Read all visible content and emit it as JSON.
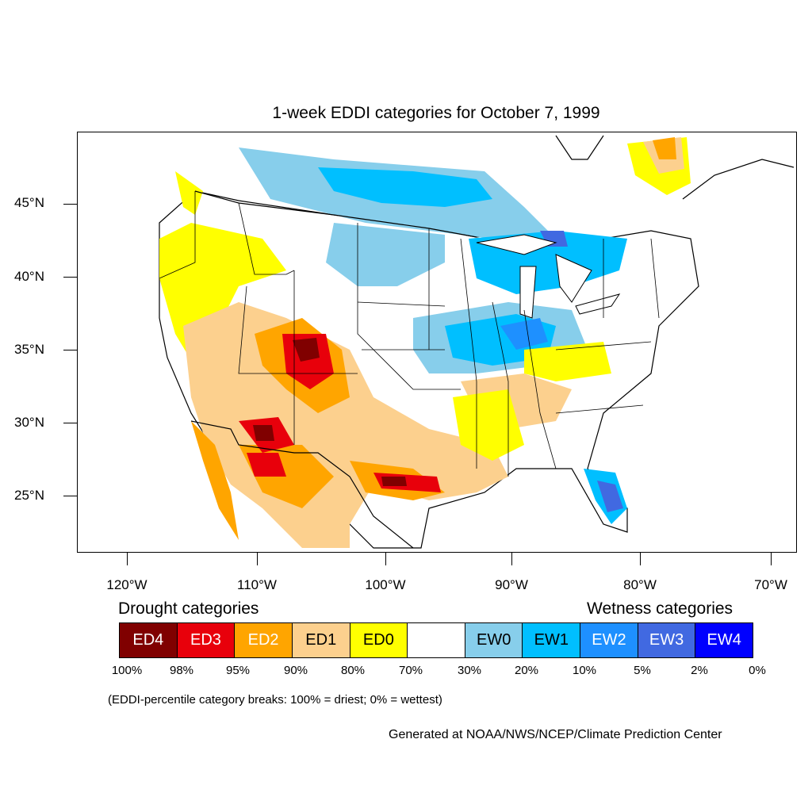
{
  "title": "1-week EDDI categories for October 7, 1999",
  "latitude_labels": [
    "45°N",
    "40°N",
    "35°N",
    "30°N",
    "25°N"
  ],
  "longitude_labels": [
    "120°W",
    "110°W",
    "100°W",
    "90°W",
    "80°W",
    "70°W"
  ],
  "legend": {
    "drought_heading": "Drought categories",
    "wetness_heading": "Wetness categories",
    "categories": [
      {
        "label": "ED4",
        "color": "#800000",
        "text_color": "#ffffff"
      },
      {
        "label": "ED3",
        "color": "#e8000b",
        "text_color": "#ffffff"
      },
      {
        "label": "ED2",
        "color": "#ffa500",
        "text_color": "#ffffff"
      },
      {
        "label": "ED1",
        "color": "#fcd08e",
        "text_color": "#000000"
      },
      {
        "label": "ED0",
        "color": "#ffff00",
        "text_color": "#000000"
      },
      {
        "label": "",
        "color": "#ffffff",
        "text_color": "#000000"
      },
      {
        "label": "EW0",
        "color": "#87ceeb",
        "text_color": "#000000"
      },
      {
        "label": "EW1",
        "color": "#00bfff",
        "text_color": "#000000"
      },
      {
        "label": "EW2",
        "color": "#1e90ff",
        "text_color": "#ffffff"
      },
      {
        "label": "EW3",
        "color": "#4169e1",
        "text_color": "#ffffff"
      },
      {
        "label": "EW4",
        "color": "#0000ff",
        "text_color": "#ffffff"
      }
    ],
    "percentile_breaks": [
      "100%",
      "98%",
      "95%",
      "90%",
      "80%",
      "70%",
      "30%",
      "20%",
      "10%",
      "5%",
      "2%",
      "0%"
    ]
  },
  "caption": "(EDDI-percentile category breaks: 100% = driest; 0% = wettest)",
  "credit": "Generated at NOAA/NWS/NCEP/Climate Prediction Center"
}
